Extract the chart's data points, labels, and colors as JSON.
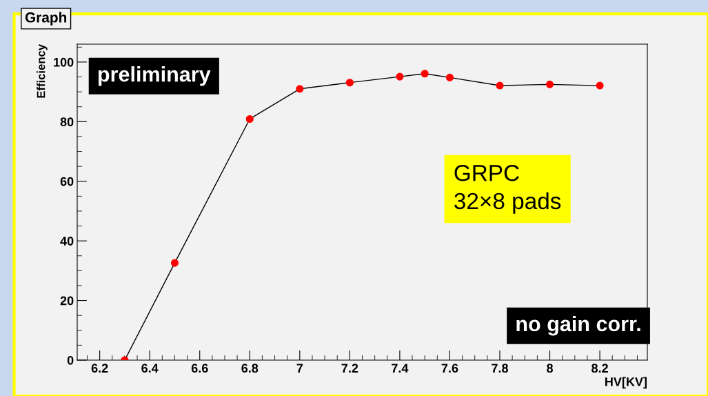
{
  "chart_data": {
    "type": "line",
    "title": "Graph",
    "xlabel": "HV[KV]",
    "ylabel": "Efficiency",
    "x": [
      6.3,
      6.5,
      6.8,
      7.0,
      7.2,
      7.4,
      7.5,
      7.6,
      7.8,
      8.0,
      8.2
    ],
    "series": [
      {
        "color": "#ff0000",
        "values": [
          0,
          32.6,
          80.9,
          91.0,
          93.1,
          95.1,
          96.1,
          94.8,
          92.1,
          92.5,
          92.1
        ]
      }
    ],
    "xlim": [
      6.11,
      8.39
    ],
    "xticks": [
      6.2,
      6.4,
      6.6,
      6.8,
      7,
      7.2,
      7.4,
      7.6,
      7.8,
      8,
      8.2
    ],
    "ylim": [
      0,
      106
    ],
    "yticks": [
      0,
      20,
      40,
      60,
      80,
      100
    ],
    "marker": "circle",
    "grid": false,
    "legend": false,
    "annotations": [
      "preliminary",
      "GRPC\n32×8 pads",
      "no gain corr."
    ]
  }
}
